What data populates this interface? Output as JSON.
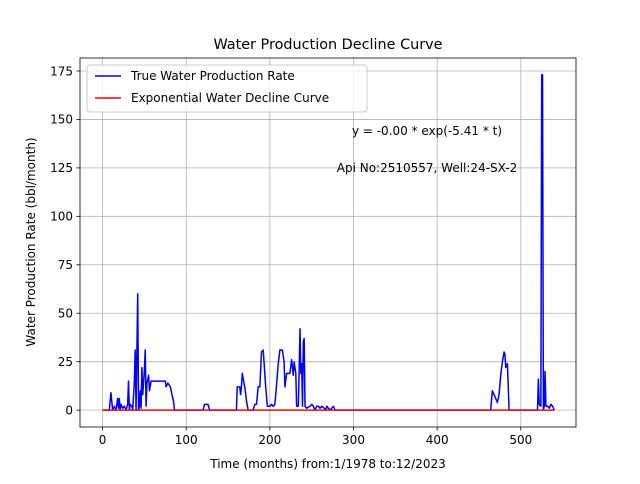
{
  "chart_data": {
    "type": "line",
    "title": "Water Production Decline Curve",
    "xlabel": "Time (months) from:1/1978 to:12/2023",
    "ylabel": "Water Production Rate (bbl/month)",
    "xlim": [
      -27,
      566
    ],
    "ylim": [
      -8.7,
      181.7
    ],
    "xticks": [
      0,
      100,
      200,
      300,
      400,
      500
    ],
    "yticks": [
      0,
      25,
      50,
      75,
      100,
      125,
      150,
      175
    ],
    "xtick_labels": [
      "0",
      "100",
      "200",
      "300",
      "400",
      "500"
    ],
    "ytick_labels": [
      "0",
      "25",
      "50",
      "75",
      "100",
      "125",
      "150",
      "175"
    ],
    "grid": true,
    "legend_position": "top-left",
    "annotations": {
      "equation": "y = -0.00 * exp(-5.41 * t)",
      "well": "Api No:2510557, Well:24-SX-2"
    },
    "series": [
      {
        "name": "True Water Production Rate",
        "color": "#0000ff",
        "points": [
          [
            0,
            0
          ],
          [
            8,
            0
          ],
          [
            10,
            9
          ],
          [
            12,
            0
          ],
          [
            14,
            2
          ],
          [
            16,
            0
          ],
          [
            18,
            6
          ],
          [
            19,
            1
          ],
          [
            20,
            6
          ],
          [
            21,
            0
          ],
          [
            22,
            3
          ],
          [
            24,
            1
          ],
          [
            26,
            2
          ],
          [
            28,
            0
          ],
          [
            30,
            3
          ],
          [
            31,
            15
          ],
          [
            32,
            0
          ],
          [
            33,
            3
          ],
          [
            35,
            2
          ],
          [
            36,
            0
          ],
          [
            38,
            15
          ],
          [
            39,
            31
          ],
          [
            40,
            0
          ],
          [
            41,
            30
          ],
          [
            42,
            60
          ],
          [
            43,
            0
          ],
          [
            44,
            2
          ],
          [
            45,
            10
          ],
          [
            46,
            1
          ],
          [
            47,
            22
          ],
          [
            48,
            8
          ],
          [
            49,
            14
          ],
          [
            50,
            21
          ],
          [
            51,
            31
          ],
          [
            52,
            2
          ],
          [
            53,
            14
          ],
          [
            55,
            18
          ],
          [
            56,
            10
          ],
          [
            58,
            15
          ],
          [
            75,
            15
          ],
          [
            76,
            12
          ],
          [
            78,
            14
          ],
          [
            81,
            12
          ],
          [
            82,
            10
          ],
          [
            85,
            4
          ],
          [
            86,
            0
          ],
          [
            88,
            0
          ],
          [
            120,
            0
          ],
          [
            122,
            3
          ],
          [
            126,
            3
          ],
          [
            128,
            0
          ],
          [
            160,
            0
          ],
          [
            161,
            12
          ],
          [
            164,
            12
          ],
          [
            165,
            8
          ],
          [
            166,
            12
          ],
          [
            167,
            19
          ],
          [
            169,
            14
          ],
          [
            170,
            12
          ],
          [
            172,
            5
          ],
          [
            174,
            0
          ],
          [
            180,
            0
          ],
          [
            182,
            3
          ],
          [
            184,
            3
          ],
          [
            186,
            12
          ],
          [
            188,
            12
          ],
          [
            190,
            30
          ],
          [
            192,
            31
          ],
          [
            193,
            25
          ],
          [
            195,
            12
          ],
          [
            197,
            2
          ],
          [
            200,
            2
          ],
          [
            202,
            3
          ],
          [
            204,
            2
          ],
          [
            206,
            3
          ],
          [
            208,
            13
          ],
          [
            210,
            24
          ],
          [
            212,
            31
          ],
          [
            215,
            31
          ],
          [
            217,
            25
          ],
          [
            218,
            12
          ],
          [
            220,
            19
          ],
          [
            224,
            19
          ],
          [
            226,
            26
          ],
          [
            228,
            18
          ],
          [
            229,
            25
          ],
          [
            231,
            19
          ],
          [
            232,
            2
          ],
          [
            234,
            2
          ],
          [
            235,
            20
          ],
          [
            236,
            42
          ],
          [
            237,
            19
          ],
          [
            238,
            24
          ],
          [
            239,
            2
          ],
          [
            240,
            35
          ],
          [
            241,
            37
          ],
          [
            242,
            2
          ],
          [
            244,
            1
          ],
          [
            248,
            2
          ],
          [
            250,
            3
          ],
          [
            252,
            2
          ],
          [
            254,
            0
          ],
          [
            256,
            2
          ],
          [
            258,
            2
          ],
          [
            260,
            1
          ],
          [
            262,
            2
          ],
          [
            265,
            1
          ],
          [
            267,
            0
          ],
          [
            268,
            2
          ],
          [
            270,
            1
          ],
          [
            272,
            0
          ],
          [
            276,
            2
          ],
          [
            278,
            0
          ],
          [
            464,
            0
          ],
          [
            466,
            10
          ],
          [
            468,
            8
          ],
          [
            470,
            6
          ],
          [
            472,
            4
          ],
          [
            474,
            8
          ],
          [
            476,
            18
          ],
          [
            478,
            25
          ],
          [
            480,
            30
          ],
          [
            481,
            29
          ],
          [
            482,
            22
          ],
          [
            484,
            24
          ],
          [
            486,
            0
          ],
          [
            520,
            0
          ],
          [
            521,
            16
          ],
          [
            522,
            3
          ],
          [
            524,
            2
          ],
          [
            525,
            173
          ],
          [
            526,
            173
          ],
          [
            527,
            0
          ],
          [
            528,
            2
          ],
          [
            529,
            20
          ],
          [
            530,
            2
          ],
          [
            532,
            2
          ],
          [
            534,
            1
          ],
          [
            536,
            3
          ],
          [
            538,
            2
          ],
          [
            540,
            0
          ]
        ]
      },
      {
        "name": "Exponential Water Decline Curve",
        "color": "#ff0000",
        "points": [
          [
            0,
            0
          ],
          [
            540,
            0
          ]
        ]
      }
    ]
  }
}
